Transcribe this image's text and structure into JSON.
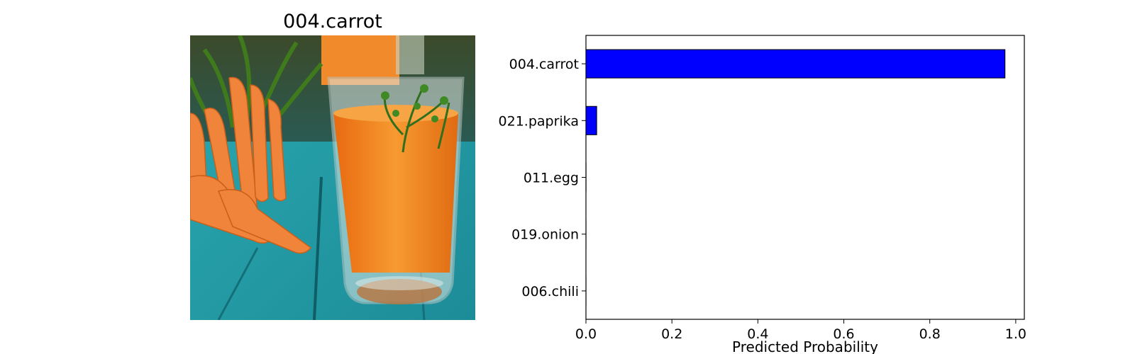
{
  "image_panel": {
    "title": "004.carrot",
    "photo_icon": "carrot-juice-photo"
  },
  "chart_data": {
    "type": "bar",
    "orientation": "horizontal",
    "categories": [
      "004.carrot",
      "021.paprika",
      "011.egg",
      "019.onion",
      "006.chili"
    ],
    "values": [
      0.975,
      0.025,
      0.0002,
      0.0001,
      0.0001
    ],
    "xlabel": "Predicted Probability",
    "ylabel": "",
    "xlim": [
      0,
      1.02
    ],
    "xticks": [
      0.0,
      0.2,
      0.4,
      0.6,
      0.8,
      1.0
    ],
    "grid": false,
    "bar_color": "#0000ff",
    "edge_color": "#000000"
  }
}
